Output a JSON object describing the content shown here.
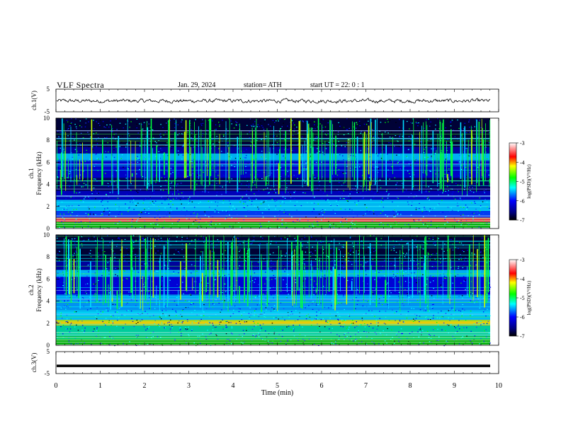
{
  "header": {
    "title": "VLF  Spectra",
    "date": "Jan. 29, 2024",
    "station": "station= ATH",
    "start": "start  UT  =   22: 0  : 1"
  },
  "colorbar": {
    "label": "log(PSD)(V²/Hz)",
    "ticks": [
      "-3",
      "-4",
      "-5",
      "-6",
      "-7"
    ],
    "colors": [
      "#ffffff",
      "#ff0000",
      "#ffff00",
      "#00ff00",
      "#00ffff",
      "#0000ff",
      "#000080",
      "#000000"
    ]
  },
  "chart_data": [
    {
      "type": "line",
      "name": "ch1-waveform",
      "ylabel": "ch.1(V)",
      "ylim": [
        -5,
        5
      ],
      "yticks": [
        "5",
        "-5"
      ],
      "x_range_min": [
        0,
        10
      ],
      "description_level": "noisy trace around 0 V"
    },
    {
      "type": "heatmap",
      "name": "ch1-spectrogram",
      "ylabel_top": "ch.1",
      "ylabel": "Frequency (kHz)",
      "ylim": [
        0,
        10
      ],
      "yticks": [
        "0",
        "2",
        "4",
        "6",
        "8",
        "10"
      ],
      "xlim": [
        0,
        10
      ],
      "color_scale": [
        -7,
        -3
      ]
    },
    {
      "type": "heatmap",
      "name": "ch2-spectrogram",
      "ylabel_top": "ch.2",
      "ylabel": "Frequency (kHz)",
      "ylim": [
        0,
        10
      ],
      "yticks": [
        "0",
        "2",
        "4",
        "6",
        "8",
        "10"
      ],
      "xlim": [
        0,
        10
      ],
      "color_scale": [
        -7,
        -3
      ]
    },
    {
      "type": "line",
      "name": "ch3-waveform",
      "ylabel": "ch.3(V)",
      "ylim": [
        -5,
        5
      ],
      "yticks": [
        "5",
        "-5"
      ],
      "level": -1.5
    }
  ],
  "xaxis": {
    "label": "Time  (min)",
    "ticks": [
      "0",
      "1",
      "2",
      "3",
      "4",
      "5",
      "6",
      "7",
      "8",
      "9",
      "10"
    ],
    "xlim": [
      0,
      10
    ]
  }
}
